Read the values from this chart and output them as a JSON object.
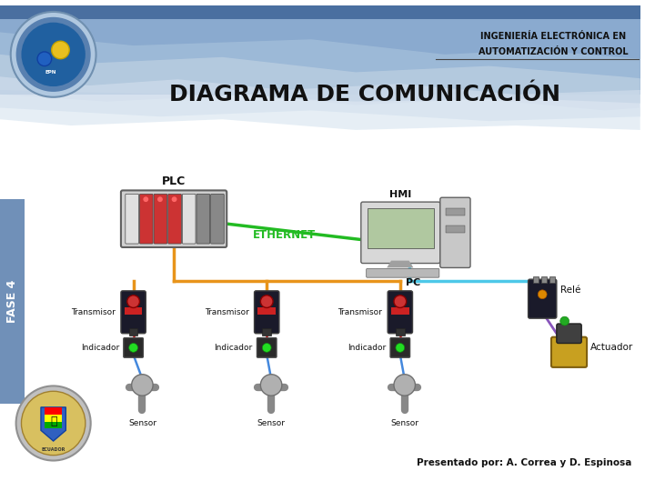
{
  "title": "DIAGRAMA DE COMUNICACIÓN",
  "header_line1": "INGENIERÍA ELECTRÓNICA EN",
  "header_line2": "AUTOMATIZACIÓN Y CONTROL",
  "footer_text": "Presentado por: A. Correa y D. Espinosa",
  "fase_text": "FASE 4",
  "ethernet_text": "ETHERNET",
  "bg_header_color": "#7090b8",
  "bg_wave1_color": "#a0bad8",
  "bg_wave2_color": "#c8d8e8",
  "bg_body_color": "#ffffff",
  "orange_color": "#e8941a",
  "cyan_color": "#4dc8e8",
  "green_color": "#22bb22",
  "purple_color": "#8855bb",
  "red_color": "#cc2222",
  "blue_color": "#4488dd"
}
